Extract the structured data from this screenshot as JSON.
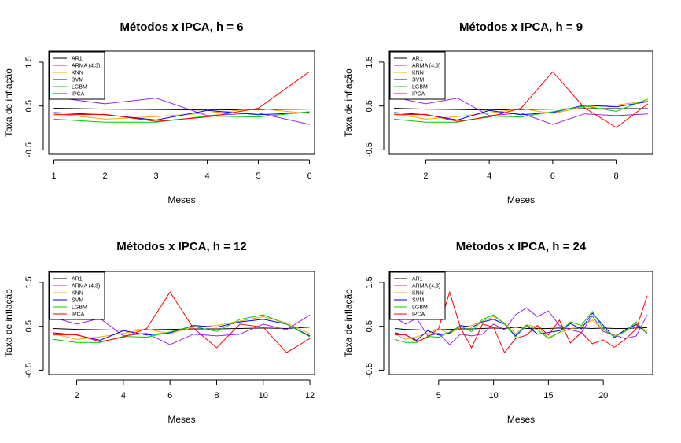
{
  "chart_data": [
    {
      "type": "line",
      "title": "Métodos x IPCA, h = 6",
      "xlabel": "Meses",
      "ylabel": "Taxa de inflação",
      "xlim": [
        0.9,
        6.1
      ],
      "ylim": [
        -0.6,
        1.75
      ],
      "xticks": [
        1,
        2,
        3,
        4,
        5,
        6
      ],
      "yticks": [
        -0.5,
        0.5,
        1.5
      ],
      "grid": false,
      "legend_position": "top-left",
      "x": [
        1,
        2,
        3,
        4,
        5,
        6
      ],
      "series": [
        {
          "name": "AR1",
          "color": "#000000",
          "values": [
            0.45,
            0.43,
            0.42,
            0.41,
            0.42,
            0.43
          ]
        },
        {
          "name": "ARMA (4,3)",
          "color": "#A020F0",
          "values": [
            0.7,
            0.55,
            0.68,
            0.28,
            0.34,
            0.08
          ]
        },
        {
          "name": "KNN",
          "color": "#FFA500",
          "values": [
            0.33,
            0.2,
            0.26,
            0.34,
            0.44,
            0.33
          ]
        },
        {
          "name": "SVM",
          "color": "#0000FF",
          "values": [
            0.35,
            0.3,
            0.18,
            0.4,
            0.3,
            0.35
          ]
        },
        {
          "name": "LGBM",
          "color": "#00CC00",
          "values": [
            0.2,
            0.13,
            0.13,
            0.27,
            0.25,
            0.37
          ]
        },
        {
          "name": "IPCA",
          "color": "#FF0000",
          "values": [
            0.3,
            0.31,
            0.15,
            0.25,
            0.45,
            1.28
          ]
        }
      ]
    },
    {
      "type": "line",
      "title": "Métodos x IPCA, h = 9",
      "xlabel": "Meses",
      "ylabel": "Taxa de inflação",
      "xlim": [
        0.85,
        9.15
      ],
      "ylim": [
        -0.6,
        1.75
      ],
      "xticks": [
        2,
        4,
        6,
        8
      ],
      "yticks": [
        -0.5,
        0.5,
        1.5
      ],
      "grid": false,
      "legend_position": "top-left",
      "x": [
        1,
        2,
        3,
        4,
        5,
        6,
        7,
        8,
        9
      ],
      "series": [
        {
          "name": "AR1",
          "color": "#000000",
          "values": [
            0.45,
            0.43,
            0.42,
            0.41,
            0.42,
            0.43,
            0.44,
            0.44,
            0.44
          ]
        },
        {
          "name": "ARMA (4,3)",
          "color": "#A020F0",
          "values": [
            0.7,
            0.55,
            0.68,
            0.28,
            0.34,
            0.08,
            0.32,
            0.28,
            0.32
          ]
        },
        {
          "name": "KNN",
          "color": "#FFA500",
          "values": [
            0.33,
            0.2,
            0.26,
            0.34,
            0.44,
            0.33,
            0.48,
            0.52,
            0.62
          ]
        },
        {
          "name": "SVM",
          "color": "#0000FF",
          "values": [
            0.35,
            0.3,
            0.18,
            0.4,
            0.3,
            0.35,
            0.52,
            0.48,
            0.6
          ]
        },
        {
          "name": "LGBM",
          "color": "#00CC00",
          "values": [
            0.2,
            0.13,
            0.13,
            0.27,
            0.25,
            0.37,
            0.5,
            0.38,
            0.66
          ]
        },
        {
          "name": "IPCA",
          "color": "#FF0000",
          "values": [
            0.3,
            0.31,
            0.15,
            0.25,
            0.45,
            1.28,
            0.46,
            0.01,
            0.55
          ]
        }
      ]
    },
    {
      "type": "line",
      "title": "Métodos x IPCA, h = 12",
      "xlabel": "Meses",
      "ylabel": "Taxa de inflação",
      "xlim": [
        0.8,
        12.2
      ],
      "ylim": [
        -0.6,
        1.75
      ],
      "xticks": [
        2,
        4,
        6,
        8,
        10,
        12
      ],
      "yticks": [
        -0.5,
        0.5,
        1.5
      ],
      "grid": false,
      "legend_position": "top-left",
      "x": [
        1,
        2,
        3,
        4,
        5,
        6,
        7,
        8,
        9,
        10,
        11,
        12
      ],
      "series": [
        {
          "name": "AR1",
          "color": "#000000",
          "values": [
            0.45,
            0.43,
            0.42,
            0.41,
            0.42,
            0.43,
            0.44,
            0.44,
            0.45,
            0.46,
            0.45,
            0.48
          ]
        },
        {
          "name": "ARMA (4,3)",
          "color": "#A020F0",
          "values": [
            0.7,
            0.55,
            0.68,
            0.28,
            0.34,
            0.08,
            0.32,
            0.28,
            0.32,
            0.55,
            0.42,
            0.76
          ]
        },
        {
          "name": "KNN",
          "color": "#FFA500",
          "values": [
            0.33,
            0.2,
            0.26,
            0.34,
            0.44,
            0.33,
            0.48,
            0.52,
            0.62,
            0.72,
            0.58,
            0.33
          ]
        },
        {
          "name": "SVM",
          "color": "#0000FF",
          "values": [
            0.35,
            0.3,
            0.18,
            0.4,
            0.3,
            0.35,
            0.52,
            0.48,
            0.6,
            0.66,
            0.55,
            0.28
          ]
        },
        {
          "name": "LGBM",
          "color": "#00CC00",
          "values": [
            0.2,
            0.13,
            0.13,
            0.27,
            0.25,
            0.37,
            0.5,
            0.38,
            0.66,
            0.76,
            0.55,
            0.26
          ]
        },
        {
          "name": "IPCA",
          "color": "#FF0000",
          "values": [
            0.3,
            0.31,
            0.15,
            0.25,
            0.45,
            1.28,
            0.46,
            0.01,
            0.55,
            0.48,
            -0.1,
            0.22
          ]
        }
      ]
    },
    {
      "type": "line",
      "title": "Métodos x IPCA, h = 24",
      "xlabel": "Meses",
      "ylabel": "Taxa de inflação",
      "xlim": [
        0.5,
        24.5
      ],
      "ylim": [
        -0.6,
        1.75
      ],
      "xticks": [
        5,
        10,
        15,
        20
      ],
      "yticks": [
        -0.5,
        0.5,
        1.5
      ],
      "grid": false,
      "legend_position": "top-left",
      "x": [
        1,
        2,
        3,
        4,
        5,
        6,
        7,
        8,
        9,
        10,
        11,
        12,
        13,
        14,
        15,
        16,
        17,
        18,
        19,
        20,
        21,
        22,
        23,
        24
      ],
      "series": [
        {
          "name": "AR1",
          "color": "#000000",
          "values": [
            0.45,
            0.43,
            0.42,
            0.41,
            0.42,
            0.43,
            0.44,
            0.44,
            0.45,
            0.46,
            0.45,
            0.48,
            0.45,
            0.45,
            0.45,
            0.46,
            0.45,
            0.46,
            0.45,
            0.46,
            0.45,
            0.45,
            0.46,
            0.47
          ]
        },
        {
          "name": "ARMA (4,3)",
          "color": "#A020F0",
          "values": [
            0.7,
            0.55,
            0.68,
            0.28,
            0.34,
            0.08,
            0.32,
            0.28,
            0.32,
            0.55,
            0.42,
            0.76,
            0.92,
            0.72,
            0.85,
            0.52,
            0.42,
            0.36,
            0.74,
            0.38,
            0.3,
            0.22,
            0.28,
            0.76
          ]
        },
        {
          "name": "KNN",
          "color": "#FFA500",
          "values": [
            0.33,
            0.2,
            0.26,
            0.34,
            0.44,
            0.33,
            0.48,
            0.52,
            0.62,
            0.72,
            0.58,
            0.33,
            0.54,
            0.48,
            0.24,
            0.36,
            0.44,
            0.5,
            0.64,
            0.42,
            0.28,
            0.4,
            0.56,
            0.38
          ]
        },
        {
          "name": "SVM",
          "color": "#0000FF",
          "values": [
            0.35,
            0.3,
            0.18,
            0.4,
            0.3,
            0.35,
            0.52,
            0.48,
            0.6,
            0.66,
            0.55,
            0.28,
            0.52,
            0.32,
            0.36,
            0.4,
            0.56,
            0.44,
            0.8,
            0.52,
            0.24,
            0.42,
            0.54,
            0.34
          ]
        },
        {
          "name": "LGBM",
          "color": "#00CC00",
          "values": [
            0.2,
            0.13,
            0.13,
            0.27,
            0.25,
            0.37,
            0.5,
            0.38,
            0.66,
            0.76,
            0.55,
            0.26,
            0.52,
            0.42,
            0.22,
            0.36,
            0.6,
            0.52,
            0.84,
            0.44,
            0.26,
            0.38,
            0.6,
            0.32
          ]
        },
        {
          "name": "IPCA",
          "color": "#FF0000",
          "values": [
            0.3,
            0.31,
            0.15,
            0.25,
            0.45,
            1.28,
            0.46,
            0.01,
            0.55,
            0.48,
            -0.1,
            0.22,
            0.3,
            0.52,
            0.3,
            0.64,
            0.12,
            0.36,
            0.1,
            0.19,
            0.02,
            0.2,
            0.44,
            1.2
          ]
        }
      ]
    }
  ]
}
